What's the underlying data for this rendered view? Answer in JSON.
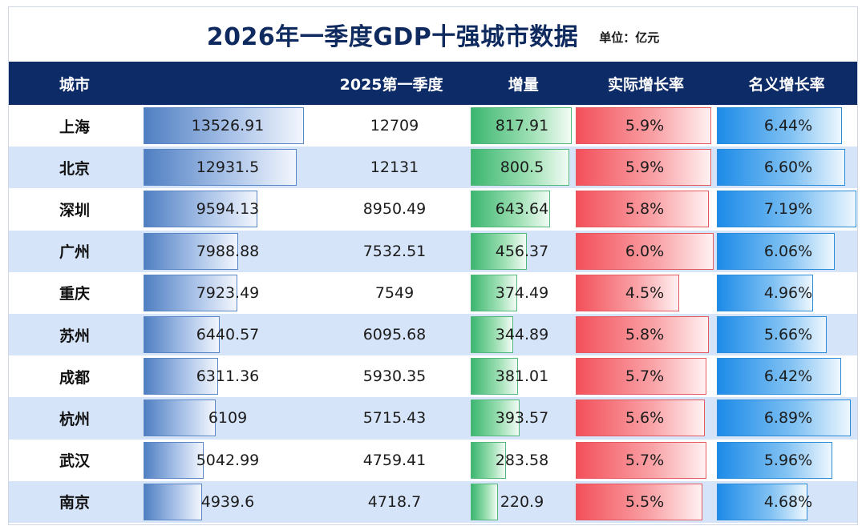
{
  "title": "2026年一季度GDP十强城市数据",
  "unit": "单位：亿元",
  "headers": {
    "city": "城市",
    "gdp": "",
    "prev": "2025第一季度",
    "increase": "增量",
    "real_growth": "实际增长率",
    "nominal_growth": "名义增长率"
  },
  "colors": {
    "header_bg": "#0d2b66",
    "title": "#0f2a5f",
    "row_alt": "#d6e4fa",
    "gdp_bar": "#4f7fc2",
    "increase_bar": "#3cb670",
    "real_bar": "#f3505a",
    "nominal_bar": "#1d8be8"
  },
  "rows": [
    {
      "city": "上海",
      "gdp": "13526.91",
      "prev": "12709",
      "increase": "817.91",
      "real": "5.9%",
      "nominal": "6.44%"
    },
    {
      "city": "北京",
      "gdp": "12931.5",
      "prev": "12131",
      "increase": "800.5",
      "real": "5.9%",
      "nominal": "6.60%"
    },
    {
      "city": "深圳",
      "gdp": "9594.13",
      "prev": "8950.49",
      "increase": "643.64",
      "real": "5.8%",
      "nominal": "7.19%"
    },
    {
      "city": "广州",
      "gdp": "7988.88",
      "prev": "7532.51",
      "increase": "456.37",
      "real": "6.0%",
      "nominal": "6.06%"
    },
    {
      "city": "重庆",
      "gdp": "7923.49",
      "prev": "7549",
      "increase": "374.49",
      "real": "4.5%",
      "nominal": "4.96%"
    },
    {
      "city": "苏州",
      "gdp": "6440.57",
      "prev": "6095.68",
      "increase": "344.89",
      "real": "5.8%",
      "nominal": "5.66%"
    },
    {
      "city": "成都",
      "gdp": "6311.36",
      "prev": "5930.35",
      "increase": "381.01",
      "real": "5.7%",
      "nominal": "6.42%"
    },
    {
      "city": "杭州",
      "gdp": "6109",
      "prev": "5715.43",
      "increase": "393.57",
      "real": "5.6%",
      "nominal": "6.89%"
    },
    {
      "city": "武汉",
      "gdp": "5042.99",
      "prev": "4759.41",
      "increase": "283.58",
      "real": "5.7%",
      "nominal": "5.96%"
    },
    {
      "city": "南京",
      "gdp": "4939.6",
      "prev": "4718.7",
      "increase": "220.9",
      "real": "5.5%",
      "nominal": "4.68%"
    }
  ]
}
